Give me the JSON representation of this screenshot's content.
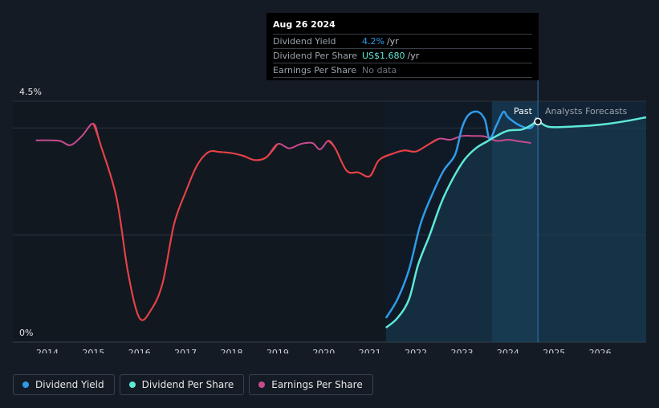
{
  "tooltip": {
    "date": "Aug 26 2024",
    "rows": [
      {
        "label": "Dividend Yield",
        "value": "4.2%",
        "unit": "/yr"
      },
      {
        "label": "Dividend Per Share",
        "value": "US$1.680",
        "unit": "/yr"
      },
      {
        "label": "Earnings Per Share",
        "value": "No data",
        "unit": ""
      }
    ]
  },
  "labels": {
    "past": "Past",
    "forecast": "Analysts Forecasts"
  },
  "legend": [
    {
      "label": "Dividend Yield",
      "color": "#2f9be8"
    },
    {
      "label": "Dividend Per Share",
      "color": "#5ee8d8"
    },
    {
      "label": "Earnings Per Share",
      "color": "#c74b8f"
    }
  ],
  "colors": {
    "yield": "#2f9be8",
    "dps": "#5ee8d8",
    "eps": "#c74b8f",
    "red": "#e84141",
    "background": "#151b24"
  },
  "chart_data": {
    "type": "line",
    "title": "",
    "y_tick_labels": [
      "4.5%",
      "0%"
    ],
    "ylim": [
      0,
      4.5
    ],
    "xlim": [
      2013.25,
      2027.0
    ],
    "x_tick_labels": [
      "2014",
      "2015",
      "2016",
      "2017",
      "2018",
      "2019",
      "2020",
      "2021",
      "2022",
      "2023",
      "2024",
      "2025",
      "2026"
    ],
    "x_ticks": [
      2014,
      2015,
      2016,
      2017,
      2018,
      2019,
      2020,
      2021,
      2022,
      2023,
      2024,
      2025,
      2026
    ],
    "past_end": 2024.65,
    "shade_start": 2023.65,
    "series": [
      {
        "name": "Earnings Per Share",
        "color": "#c74b8f",
        "points": [
          [
            2013.75,
            3.77
          ],
          [
            2014.25,
            3.76
          ],
          [
            2014.5,
            3.68
          ],
          [
            2014.75,
            3.85
          ],
          [
            2015.0,
            4.08
          ],
          [
            2015.15,
            3.7
          ],
          [
            2015.5,
            2.7
          ],
          [
            2015.75,
            1.3
          ],
          [
            2016.0,
            0.45
          ],
          [
            2016.25,
            0.6
          ],
          [
            2016.5,
            1.1
          ],
          [
            2016.75,
            2.2
          ],
          [
            2017.0,
            2.8
          ],
          [
            2017.25,
            3.3
          ],
          [
            2017.5,
            3.55
          ],
          [
            2017.75,
            3.55
          ],
          [
            2018.0,
            3.53
          ],
          [
            2018.25,
            3.48
          ],
          [
            2018.5,
            3.4
          ],
          [
            2018.75,
            3.45
          ],
          [
            2019.0,
            3.7
          ],
          [
            2019.25,
            3.62
          ],
          [
            2019.5,
            3.7
          ],
          [
            2019.75,
            3.72
          ],
          [
            2019.92,
            3.6
          ],
          [
            2020.1,
            3.76
          ],
          [
            2020.25,
            3.62
          ],
          [
            2020.5,
            3.2
          ],
          [
            2020.75,
            3.17
          ],
          [
            2021.0,
            3.1
          ],
          [
            2021.2,
            3.4
          ],
          [
            2021.5,
            3.52
          ],
          [
            2021.75,
            3.58
          ],
          [
            2022.0,
            3.56
          ],
          [
            2022.25,
            3.68
          ],
          [
            2022.5,
            3.8
          ],
          [
            2022.75,
            3.78
          ],
          [
            2023.0,
            3.85
          ],
          [
            2023.25,
            3.85
          ],
          [
            2023.5,
            3.84
          ],
          [
            2023.75,
            3.76
          ],
          [
            2024.0,
            3.78
          ],
          [
            2024.25,
            3.75
          ],
          [
            2024.5,
            3.72
          ]
        ]
      },
      {
        "name": "Dividend Yield",
        "color": "#2f9be8",
        "points": [
          [
            2021.35,
            0.45
          ],
          [
            2021.6,
            0.8
          ],
          [
            2021.85,
            1.35
          ],
          [
            2022.1,
            2.2
          ],
          [
            2022.35,
            2.75
          ],
          [
            2022.6,
            3.2
          ],
          [
            2022.85,
            3.5
          ],
          [
            2023.0,
            4.0
          ],
          [
            2023.15,
            4.25
          ],
          [
            2023.35,
            4.3
          ],
          [
            2023.5,
            4.15
          ],
          [
            2023.6,
            3.8
          ],
          [
            2023.75,
            4.05
          ],
          [
            2023.9,
            4.3
          ],
          [
            2024.0,
            4.2
          ],
          [
            2024.25,
            4.05
          ],
          [
            2024.5,
            4.0
          ],
          [
            2024.62,
            4.2
          ]
        ]
      },
      {
        "name": "Dividend Per Share",
        "color": "#5ee8d8",
        "points": [
          [
            2021.35,
            0.27
          ],
          [
            2021.6,
            0.45
          ],
          [
            2021.85,
            0.8
          ],
          [
            2022.05,
            1.45
          ],
          [
            2022.3,
            2.0
          ],
          [
            2022.55,
            2.6
          ],
          [
            2022.8,
            3.05
          ],
          [
            2023.05,
            3.4
          ],
          [
            2023.3,
            3.62
          ],
          [
            2023.55,
            3.75
          ],
          [
            2023.75,
            3.85
          ],
          [
            2024.0,
            3.95
          ],
          [
            2024.3,
            3.97
          ],
          [
            2024.5,
            4.05
          ],
          [
            2024.65,
            4.12
          ],
          [
            2024.9,
            4.02
          ],
          [
            2025.5,
            4.03
          ],
          [
            2026.0,
            4.06
          ],
          [
            2026.5,
            4.12
          ],
          [
            2027.0,
            4.2
          ]
        ]
      }
    ]
  }
}
